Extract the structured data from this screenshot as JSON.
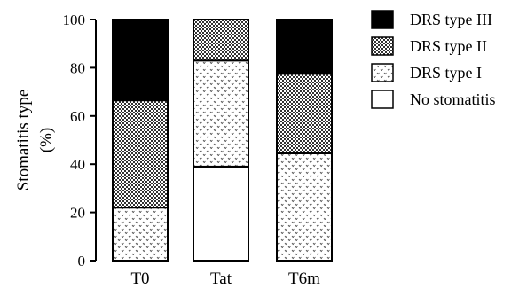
{
  "chart_data": {
    "type": "bar",
    "stacked": true,
    "categories": [
      "T0",
      "Tat",
      "T6m"
    ],
    "ylabel_lines": [
      "Stomatitis type",
      "(%)"
    ],
    "ylim": [
      0,
      100
    ],
    "yticks": [
      0,
      20,
      40,
      60,
      80,
      100
    ],
    "grid": false,
    "legend_position": "right",
    "series": [
      {
        "name": "No stomatitis",
        "pattern": "empty",
        "values": [
          0,
          39,
          0
        ]
      },
      {
        "name": "DRS type I",
        "pattern": "dotted",
        "values": [
          22,
          44,
          44.5
        ]
      },
      {
        "name": "DRS type II",
        "pattern": "checker",
        "values": [
          44.5,
          17,
          33
        ]
      },
      {
        "name": "DRS type III",
        "pattern": "solid",
        "values": [
          33.5,
          0,
          22.5
        ]
      }
    ],
    "legend_order": [
      "DRS type III",
      "DRS type II",
      "DRS type I",
      "No stomatitis"
    ]
  }
}
